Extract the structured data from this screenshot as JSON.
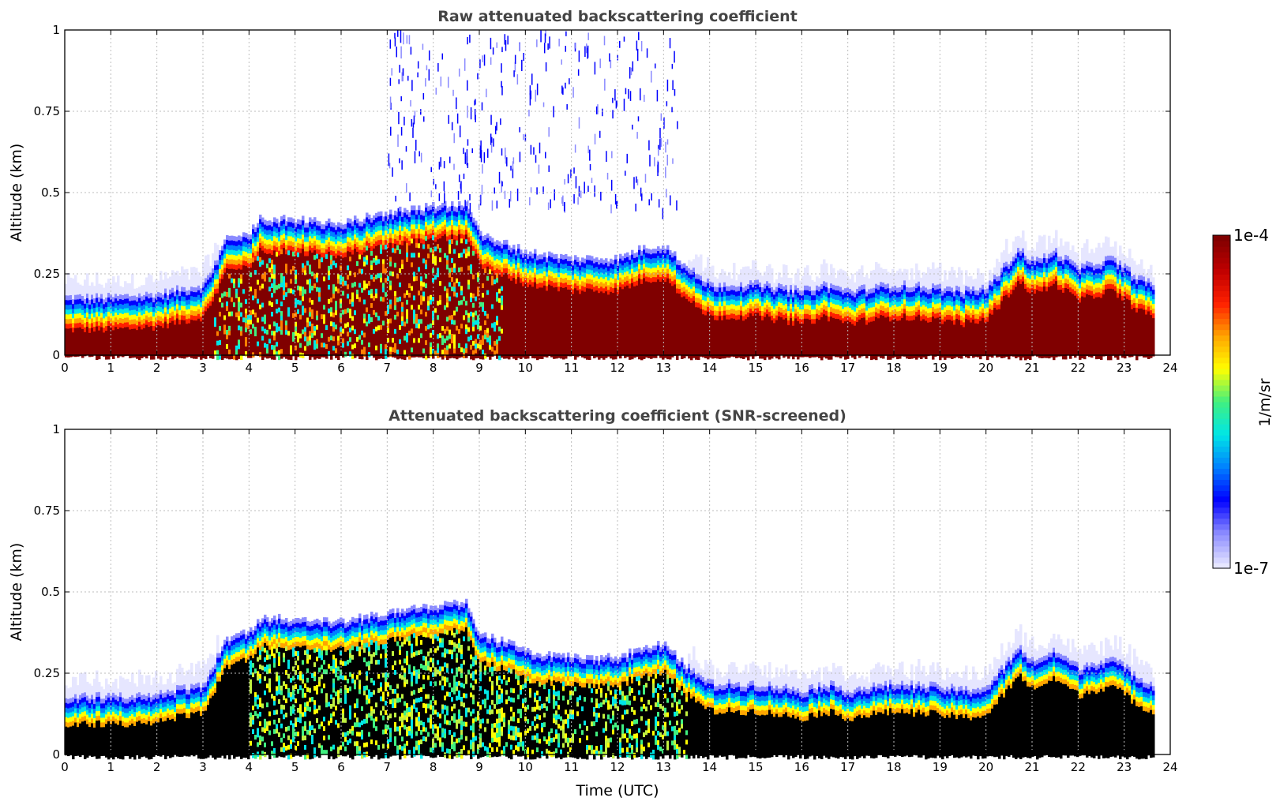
{
  "chart_data": [
    {
      "type": "heatmap",
      "title": "Raw attenuated backscattering coefficient",
      "ylabel": "Altitude (km)",
      "xlabel": "",
      "xlim": [
        0,
        24
      ],
      "ylim": [
        0,
        1
      ],
      "xticks": [
        "0",
        "1",
        "2",
        "3",
        "4",
        "5",
        "6",
        "7",
        "8",
        "9",
        "10",
        "11",
        "12",
        "13",
        "14",
        "15",
        "16",
        "17",
        "18",
        "19",
        "20",
        "21",
        "22",
        "23",
        "24"
      ],
      "yticks": [
        "0",
        "0.25",
        "0.5",
        "0.75",
        "1"
      ],
      "grid": true,
      "data_end_hour": 23.7,
      "top_profile_km": [
        [
          0,
          0.18
        ],
        [
          1,
          0.18
        ],
        [
          2,
          0.19
        ],
        [
          3,
          0.22
        ],
        [
          3.5,
          0.36
        ],
        [
          4,
          0.38
        ],
        [
          4.2,
          0.42
        ],
        [
          5,
          0.42
        ],
        [
          6,
          0.41
        ],
        [
          7,
          0.44
        ],
        [
          8,
          0.46
        ],
        [
          8.7,
          0.47
        ],
        [
          9,
          0.37
        ],
        [
          9.5,
          0.35
        ],
        [
          10,
          0.32
        ],
        [
          11,
          0.3
        ],
        [
          12,
          0.3
        ],
        [
          12.5,
          0.33
        ],
        [
          13,
          0.34
        ],
        [
          13.5,
          0.27
        ],
        [
          14,
          0.22
        ],
        [
          15,
          0.22
        ],
        [
          16,
          0.2
        ],
        [
          16.5,
          0.22
        ],
        [
          17,
          0.2
        ],
        [
          18,
          0.22
        ],
        [
          19,
          0.21
        ],
        [
          19.5,
          0.2
        ],
        [
          20,
          0.21
        ],
        [
          20.7,
          0.33
        ],
        [
          21,
          0.29
        ],
        [
          21.5,
          0.32
        ],
        [
          22,
          0.27
        ],
        [
          22.7,
          0.3
        ],
        [
          23.3,
          0.24
        ],
        [
          23.7,
          0.21
        ]
      ]
    },
    {
      "type": "heatmap",
      "title": "Attenuated backscattering coefficient (SNR-screened)",
      "ylabel": "Altitude (km)",
      "xlabel": "Time (UTC)",
      "xlim": [
        0,
        24
      ],
      "ylim": [
        0,
        1
      ],
      "xticks": [
        "0",
        "1",
        "2",
        "3",
        "4",
        "5",
        "6",
        "7",
        "8",
        "9",
        "10",
        "11",
        "12",
        "13",
        "14",
        "15",
        "16",
        "17",
        "18",
        "19",
        "20",
        "21",
        "22",
        "23",
        "24"
      ],
      "yticks": [
        "0",
        "0.25",
        "0.5",
        "0.75",
        "1"
      ],
      "grid": true,
      "screened_color": "#000000",
      "data_end_hour": 23.7
    }
  ],
  "colorbar": {
    "label": "1/m/sr",
    "max_label": "1e-4",
    "min_label": "1e-7",
    "scale": "log",
    "range": [
      1e-07,
      0.0001
    ],
    "colors": [
      "#e6e6ff",
      "#8a8aff",
      "#0000ff",
      "#0080ff",
      "#00e6e6",
      "#40f080",
      "#ffff00",
      "#ffa500",
      "#ff2000",
      "#c00000",
      "#800000"
    ]
  }
}
